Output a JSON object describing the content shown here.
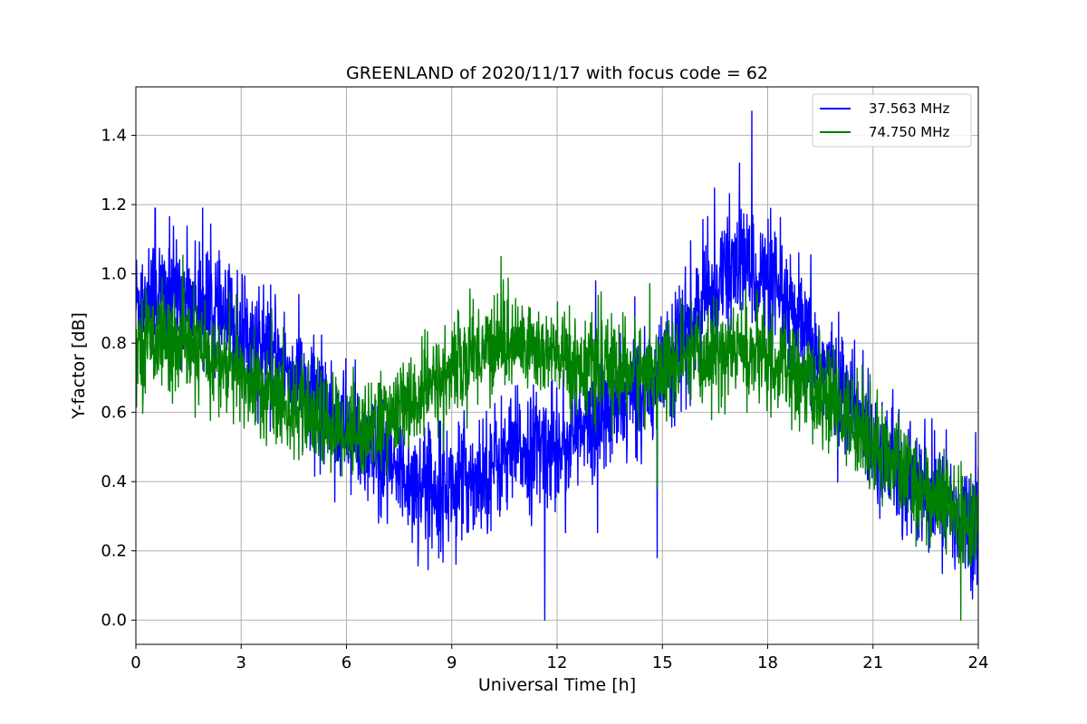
{
  "chart_data": {
    "type": "line",
    "title": "GREENLAND of 2020/11/17 with focus code = 62",
    "xlabel": "Universal Time [h]",
    "ylabel": "Y-factor [dB]",
    "xlim": [
      0,
      24
    ],
    "ylim": [
      -0.07,
      1.54
    ],
    "xticks": [
      0,
      3,
      6,
      9,
      12,
      15,
      18,
      21,
      24
    ],
    "yticks": [
      0.0,
      0.2,
      0.4,
      0.6,
      0.8,
      1.0,
      1.2,
      1.4
    ],
    "xtick_labels": [
      "0",
      "3",
      "6",
      "9",
      "12",
      "15",
      "18",
      "21",
      "24"
    ],
    "ytick_labels": [
      "0.0",
      "0.2",
      "0.4",
      "0.6",
      "0.8",
      "1.0",
      "1.2",
      "1.4"
    ],
    "grid": true,
    "legend_position": "top-right",
    "series": [
      {
        "name": "37.563 MHz",
        "color": "#0000ff",
        "x": [
          0,
          0.5,
          1,
          1.5,
          2,
          2.5,
          3,
          3.5,
          4,
          4.5,
          5,
          5.5,
          6,
          6.5,
          7,
          7.5,
          8,
          8.5,
          9,
          9.5,
          10,
          10.5,
          11,
          11.5,
          12,
          12.5,
          13,
          13.5,
          14,
          14.5,
          15,
          15.5,
          16,
          16.5,
          17,
          17.5,
          18,
          18.5,
          19,
          19.5,
          20,
          20.5,
          21,
          21.5,
          22,
          22.5,
          23,
          23.5,
          24
        ],
        "y": [
          0.92,
          0.95,
          0.94,
          0.92,
          0.9,
          0.86,
          0.83,
          0.79,
          0.75,
          0.7,
          0.65,
          0.6,
          0.55,
          0.5,
          0.45,
          0.42,
          0.4,
          0.39,
          0.39,
          0.41,
          0.44,
          0.47,
          0.49,
          0.5,
          0.51,
          0.53,
          0.56,
          0.6,
          0.64,
          0.68,
          0.73,
          0.8,
          0.88,
          0.96,
          1.02,
          1.02,
          0.97,
          0.9,
          0.82,
          0.75,
          0.68,
          0.6,
          0.52,
          0.45,
          0.4,
          0.36,
          0.33,
          0.3,
          0.28
        ],
        "spikes": [
          [
            11.65,
            0.0
          ],
          [
            14.85,
            0.18
          ],
          [
            17.55,
            1.47
          ],
          [
            0.55,
            1.19
          ],
          [
            1.9,
            1.19
          ],
          [
            17.2,
            1.32
          ],
          [
            13.1,
            0.98
          ]
        ]
      },
      {
        "name": "74.750 MHz",
        "color": "#008000",
        "x": [
          0,
          0.5,
          1,
          1.5,
          2,
          2.5,
          3,
          3.5,
          4,
          4.5,
          5,
          5.5,
          6,
          6.5,
          7,
          7.5,
          8,
          8.5,
          9,
          9.5,
          10,
          10.5,
          11,
          11.5,
          12,
          12.5,
          13,
          13.5,
          14,
          14.5,
          15,
          15.5,
          16,
          16.5,
          17,
          17.5,
          18,
          18.5,
          19,
          19.5,
          20,
          20.5,
          21,
          21.5,
          22,
          22.5,
          23,
          23.5,
          24
        ],
        "y": [
          0.8,
          0.82,
          0.8,
          0.78,
          0.76,
          0.73,
          0.7,
          0.67,
          0.64,
          0.61,
          0.58,
          0.56,
          0.55,
          0.55,
          0.57,
          0.6,
          0.64,
          0.68,
          0.72,
          0.76,
          0.79,
          0.8,
          0.8,
          0.78,
          0.76,
          0.74,
          0.73,
          0.72,
          0.72,
          0.72,
          0.72,
          0.73,
          0.75,
          0.77,
          0.78,
          0.77,
          0.75,
          0.72,
          0.69,
          0.65,
          0.61,
          0.56,
          0.51,
          0.46,
          0.41,
          0.37,
          0.33,
          0.29,
          0.25
        ],
        "spikes": [
          [
            10.4,
            1.05
          ],
          [
            14.85,
            0.38
          ],
          [
            23.5,
            0.0
          ]
        ]
      }
    ]
  }
}
